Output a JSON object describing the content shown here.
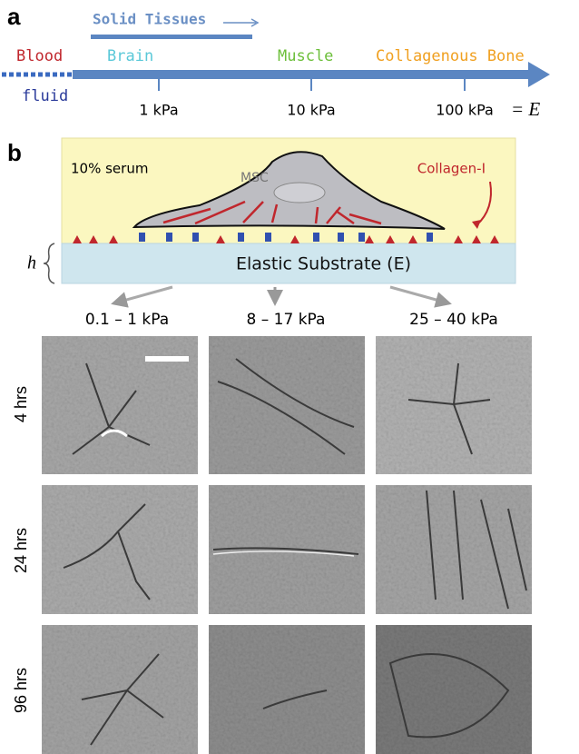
{
  "panel_a": {
    "label": "a",
    "solid_tissues": "Solid Tissues",
    "tissues": {
      "blood": "Blood",
      "fluid": "fluid",
      "brain": "Brain",
      "muscle": "Muscle",
      "bone": "Collagenous Bone"
    },
    "scale_labels": [
      "1 kPa",
      "10 kPa",
      "100 kPa"
    ],
    "modulus": "= E"
  },
  "panel_b": {
    "label": "b",
    "serum": "10% serum",
    "cell": "MSC",
    "collagen": "Collagen-I",
    "thickness": "h",
    "substrate": "Elastic Substrate (E)",
    "columns": [
      "0.1 – 1 kPa",
      "8 – 17 kPa",
      "25 – 40 kPa"
    ],
    "rows": [
      "4 hrs",
      "24 hrs",
      "96 hrs"
    ]
  }
}
